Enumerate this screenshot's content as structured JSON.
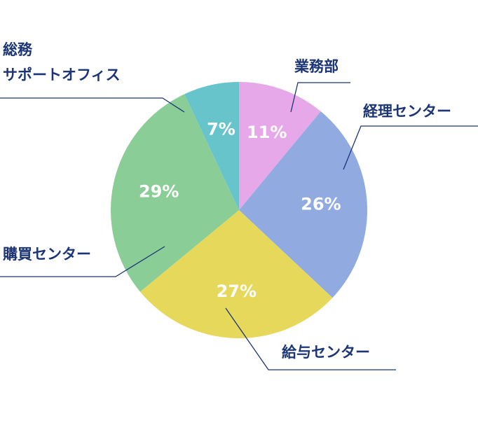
{
  "chart_data": {
    "type": "pie",
    "categories": [
      "業務部",
      "経理センター",
      "給与センター",
      "購買センター",
      "総務\nサポートオフィス"
    ],
    "values": [
      11,
      26,
      27,
      29,
      7
    ],
    "value_labels": [
      "11%",
      "26%",
      "27%",
      "29%",
      "7%"
    ],
    "colors": [
      "#e6a8e8",
      "#91abe1",
      "#e6d85a",
      "#8bcd97",
      "#68c4cb"
    ]
  }
}
